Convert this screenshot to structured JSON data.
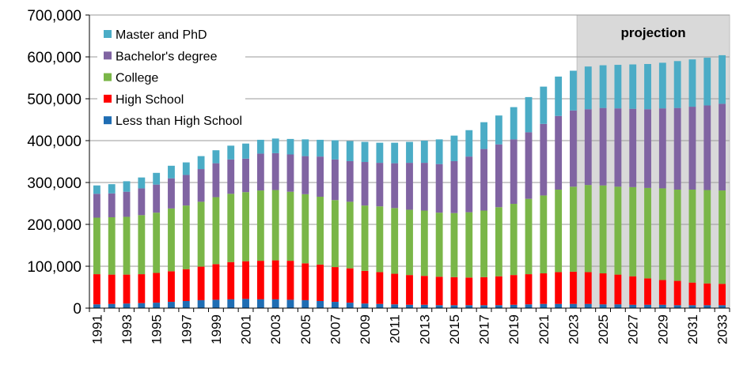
{
  "chart_data": {
    "type": "bar",
    "stacked": true,
    "title": "",
    "xlabel": "",
    "ylabel": "",
    "ylim": [
      0,
      700000
    ],
    "y_ticks": [
      "0",
      "100,000",
      "200,000",
      "300,000",
      "400,000",
      "500,000",
      "600,000",
      "700,000"
    ],
    "y_tick_values": [
      0,
      100000,
      200000,
      300000,
      400000,
      500000,
      600000,
      700000
    ],
    "grid": true,
    "legend_position": "top-left",
    "projection_label": "projection",
    "projection_start": "2024",
    "categories": [
      "1991",
      "1992",
      "1993",
      "1994",
      "1995",
      "1996",
      "1997",
      "1998",
      "1999",
      "2000",
      "2001",
      "2002",
      "2003",
      "2004",
      "2005",
      "2006",
      "2007",
      "2008",
      "2009",
      "2010",
      "2011",
      "2012",
      "2013",
      "2014",
      "2015",
      "2016",
      "2017",
      "2018",
      "2019",
      "2020",
      "2021",
      "2022",
      "2023",
      "2024",
      "2025",
      "2026",
      "2027",
      "2028",
      "2029",
      "2030",
      "2031",
      "2032",
      "2033"
    ],
    "x_tick_labels": [
      "1991",
      "1993",
      "1995",
      "1997",
      "1999",
      "2001",
      "2003",
      "2005",
      "2007",
      "2009",
      "2011",
      "2013",
      "2015",
      "2017",
      "2019",
      "2021",
      "2023",
      "2025",
      "2027",
      "2029",
      "2031",
      "2033"
    ],
    "series": [
      {
        "name": "Less than High School",
        "color": "#1f6db3",
        "values": [
          9000,
          10000,
          11000,
          12000,
          13000,
          15000,
          17000,
          19000,
          20000,
          21000,
          22000,
          21000,
          21000,
          20000,
          19000,
          17000,
          15000,
          13000,
          11000,
          10000,
          9000,
          8000,
          8000,
          7000,
          7000,
          7000,
          7000,
          7000,
          8000,
          9000,
          10000,
          10000,
          10000,
          10000,
          9000,
          9000,
          8000,
          8000,
          8000,
          7000,
          7000,
          7000,
          7000
        ]
      },
      {
        "name": "High School",
        "color": "#ff0000",
        "values": [
          72000,
          70000,
          69000,
          69000,
          71000,
          73000,
          76000,
          80000,
          85000,
          89000,
          90000,
          92000,
          93000,
          93000,
          88000,
          87000,
          83000,
          82000,
          78000,
          76000,
          73000,
          71000,
          69000,
          68000,
          67000,
          66000,
          67000,
          69000,
          71000,
          72000,
          73000,
          76000,
          77000,
          76000,
          74000,
          71000,
          68000,
          63000,
          59000,
          58000,
          54000,
          52000,
          51000
        ]
      },
      {
        "name": "College",
        "color": "#7ab648",
        "values": [
          135000,
          137000,
          138000,
          141000,
          144000,
          150000,
          152000,
          155000,
          160000,
          163000,
          165000,
          168000,
          168000,
          165000,
          165000,
          162000,
          160000,
          159000,
          156000,
          157000,
          157000,
          156000,
          156000,
          153000,
          153000,
          156000,
          159000,
          165000,
          170000,
          180000,
          186000,
          197000,
          203000,
          208000,
          210000,
          210000,
          213000,
          216000,
          219000,
          218000,
          222000,
          223000,
          223000
        ]
      },
      {
        "name": "Bachelor's degree",
        "color": "#8064a2",
        "values": [
          57000,
          57000,
          60000,
          64000,
          67000,
          72000,
          73000,
          78000,
          81000,
          82000,
          80000,
          88000,
          88000,
          89000,
          91000,
          96000,
          97000,
          97000,
          104000,
          104000,
          107000,
          112000,
          114000,
          116000,
          124000,
          133000,
          147000,
          150000,
          154000,
          159000,
          171000,
          176000,
          182000,
          181000,
          185000,
          187000,
          187000,
          188000,
          191000,
          195000,
          198000,
          202000,
          207000
        ]
      },
      {
        "name": "Master and PhD",
        "color": "#4bacc6",
        "values": [
          20000,
          22000,
          25000,
          26000,
          28000,
          30000,
          30000,
          31000,
          31000,
          33000,
          36000,
          33000,
          35000,
          37000,
          40000,
          40000,
          46000,
          48000,
          48000,
          48000,
          49000,
          50000,
          53000,
          59000,
          61000,
          63000,
          64000,
          69000,
          77000,
          84000,
          89000,
          94000,
          95000,
          102000,
          102000,
          104000,
          106000,
          108000,
          109000,
          112000,
          113000,
          114000,
          116000
        ]
      }
    ]
  }
}
